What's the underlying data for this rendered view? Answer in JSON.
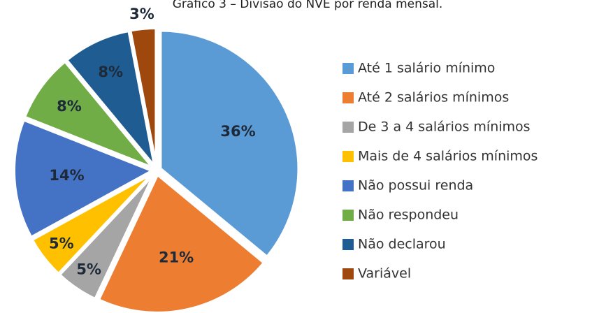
{
  "chart_data": {
    "type": "pie",
    "title": "Gráfico 3 – Divisão do NVE por renda mensal.",
    "categories": [
      "Até 1 salário mínimo",
      "Até 2 salários mínimos",
      "De 3 a 4 salários mínimos",
      "Mais de 4 salários mínimos",
      "Não possui renda",
      "Não respondeu",
      "Não declarou",
      "Variável"
    ],
    "values": [
      36,
      21,
      5,
      5,
      14,
      8,
      8,
      3
    ],
    "value_labels": [
      "36%",
      "21%",
      "5%",
      "5%",
      "14%",
      "8%",
      "8%",
      "3%"
    ],
    "colors": [
      "#5b9bd5",
      "#ed7d31",
      "#a5a5a5",
      "#ffc000",
      "#4472c4",
      "#70ad47",
      "#1f5c91",
      "#9e480e"
    ],
    "legend": "right"
  }
}
